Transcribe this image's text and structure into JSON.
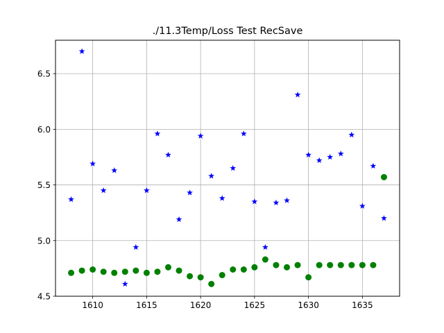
{
  "chart_data": {
    "type": "scatter",
    "title": "./11.3Temp/Loss Test RecSave",
    "xlabel": "",
    "ylabel": "",
    "xlim": [
      1606.55,
      1638.45
    ],
    "ylim": [
      4.5,
      6.8
    ],
    "xticks": [
      1610,
      1615,
      1620,
      1625,
      1630,
      1635
    ],
    "yticks": [
      4.5,
      5.0,
      5.5,
      6.0,
      6.5
    ],
    "xtick_labels": [
      "1610",
      "1615",
      "1620",
      "1625",
      "1630",
      "1635"
    ],
    "ytick_labels": [
      "4.5",
      "5.0",
      "5.5",
      "6.0",
      "6.5"
    ],
    "grid": true,
    "series": [
      {
        "marker": "star",
        "color": "#0000ff",
        "x": [
          1608,
          1609,
          1610,
          1611,
          1612,
          1613,
          1614,
          1615,
          1616,
          1617,
          1618,
          1619,
          1620,
          1621,
          1622,
          1623,
          1624,
          1625,
          1626,
          1627,
          1628,
          1629,
          1630,
          1631,
          1632,
          1633,
          1634,
          1635,
          1636,
          1637
        ],
        "values": [
          5.37,
          6.7,
          5.69,
          5.45,
          5.63,
          4.61,
          4.94,
          5.45,
          5.96,
          5.77,
          5.19,
          5.43,
          5.94,
          5.58,
          5.38,
          5.65,
          5.96,
          5.35,
          4.94,
          5.34,
          5.36,
          6.31,
          5.77,
          5.72,
          5.75,
          5.78,
          5.95,
          5.31,
          5.67,
          5.2
        ]
      },
      {
        "marker": "circle",
        "color": "#008000",
        "x": [
          1608,
          1609,
          1610,
          1611,
          1612,
          1613,
          1614,
          1615,
          1616,
          1617,
          1618,
          1619,
          1620,
          1621,
          1622,
          1623,
          1624,
          1625,
          1626,
          1627,
          1628,
          1629,
          1630,
          1631,
          1632,
          1633,
          1634,
          1635,
          1636,
          1637
        ],
        "values": [
          4.71,
          4.73,
          4.74,
          4.72,
          4.71,
          4.72,
          4.73,
          4.71,
          4.72,
          4.76,
          4.73,
          4.68,
          4.67,
          4.61,
          4.69,
          4.74,
          4.74,
          4.76,
          4.83,
          4.78,
          4.76,
          4.78,
          4.67,
          4.78,
          4.78,
          4.78,
          4.78,
          4.78,
          4.78,
          5.57
        ]
      }
    ]
  }
}
